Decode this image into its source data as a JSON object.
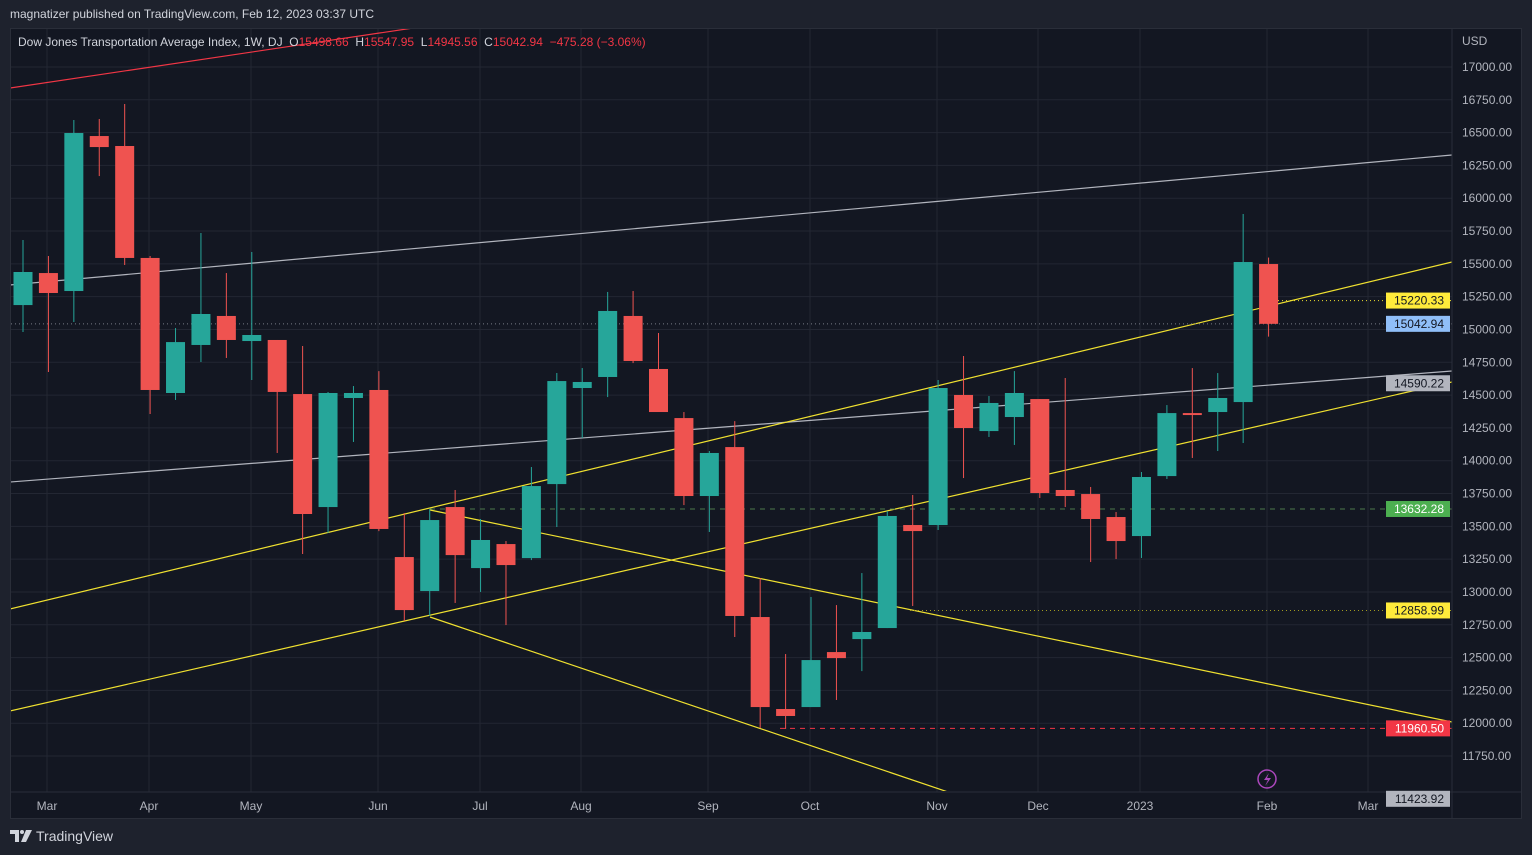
{
  "header": {
    "published": "magnatizer published on TradingView.com, Feb 12, 2023 03:37 UTC"
  },
  "legend": {
    "symbol": "Dow Jones Transportation Average Index, 1W, DJ",
    "open_label": "O",
    "open": "15498.66",
    "high_label": "H",
    "high": "15547.95",
    "low_label": "L",
    "low": "14945.56",
    "close_label": "C",
    "close": "15042.94",
    "change": "−475.28 (−3.06%)"
  },
  "currency": "USD",
  "colors": {
    "up": "#26a69a",
    "down": "#ef5350",
    "yellow": "#f0e130",
    "grid": "#232733"
  },
  "price_axis": [
    "17000.00",
    "16750.00",
    "16500.00",
    "16250.00",
    "16000.00",
    "15750.00",
    "15500.00",
    "15250.00",
    "15000.00",
    "14750.00",
    "14500.00",
    "14250.00",
    "14000.00",
    "13750.00",
    "13500.00",
    "13250.00",
    "13000.00",
    "12750.00",
    "12500.00",
    "12250.00",
    "12000.00",
    "11750.00"
  ],
  "time_axis": [
    "Mar",
    "Apr",
    "May",
    "Jun",
    "Jul",
    "Aug",
    "Sep",
    "Oct",
    "Nov",
    "Dec",
    "2023",
    "Feb",
    "Mar"
  ],
  "price_badges": [
    {
      "value": "15220.33",
      "bg": "#ffeb3b",
      "fg": "#131722",
      "line": "dotted-yellow"
    },
    {
      "value": "15042.94",
      "bg": "#90bff9",
      "fg": "#131722",
      "line": "dotted-gray"
    },
    {
      "value": "14590.22",
      "bg": "#b2b5be",
      "fg": "#131722",
      "line": "none"
    },
    {
      "value": "13632.28",
      "bg": "#4caf50",
      "fg": "#ffffff",
      "line": "dashed-green"
    },
    {
      "value": "12858.99",
      "bg": "#ffeb3b",
      "fg": "#131722",
      "line": "dotted-olive"
    },
    {
      "value": "11960.50",
      "bg": "#f23645",
      "fg": "#ffffff",
      "line": "dashed-red"
    },
    {
      "value": "11423.92",
      "bg": "#b2b5be",
      "fg": "#131722",
      "line": "none"
    }
  ],
  "chart_data": {
    "type": "candlestick",
    "title": "Dow Jones Transportation Average Index, 1W, DJ",
    "ylim": [
      11600,
      17300
    ],
    "ohlc": [
      [
        15186,
        15682,
        14981,
        15438
      ],
      [
        15430,
        15560,
        14676,
        15278
      ],
      [
        15293,
        16596,
        15057,
        16497
      ],
      [
        16474,
        16604,
        16169,
        16390
      ],
      [
        16398,
        16718,
        15491,
        15545
      ],
      [
        15545,
        15560,
        14356,
        14539
      ],
      [
        14516,
        15011,
        14463,
        14904
      ],
      [
        14882,
        15735,
        14752,
        15118
      ],
      [
        15103,
        15430,
        14783,
        14920
      ],
      [
        14912,
        15590,
        14615,
        14958
      ],
      [
        14920,
        14920,
        14059,
        14524
      ],
      [
        14508,
        14874,
        13289,
        13594
      ],
      [
        13647,
        14524,
        13449,
        14516
      ],
      [
        14478,
        14569,
        14143,
        14516
      ],
      [
        14539,
        14683,
        13464,
        13480
      ],
      [
        13266,
        13601,
        12779,
        12862
      ],
      [
        13007,
        13632,
        12817,
        13548
      ],
      [
        13647,
        13777,
        12916,
        13281
      ],
      [
        13182,
        13556,
        13000,
        13396
      ],
      [
        13365,
        13388,
        12748,
        13205
      ],
      [
        13258,
        13952,
        13243,
        13807
      ],
      [
        13822,
        14668,
        13495,
        14607
      ],
      [
        14554,
        14706,
        14173,
        14600
      ],
      [
        14638,
        15286,
        14485,
        15141
      ],
      [
        15103,
        15293,
        14744,
        14760
      ],
      [
        14699,
        14973,
        14371,
        14371
      ],
      [
        14325,
        14371,
        13662,
        13731
      ],
      [
        13731,
        14074,
        13457,
        14059
      ],
      [
        14104,
        14302,
        12657,
        12817
      ],
      [
        12809,
        13106,
        11963,
        12123
      ],
      [
        12108,
        12527,
        11956,
        12055
      ],
      [
        12123,
        12962,
        12123,
        12481
      ],
      [
        12542,
        12900,
        12177,
        12496
      ],
      [
        12641,
        13144,
        12397,
        12695
      ],
      [
        12725,
        13617,
        12725,
        13579
      ],
      [
        13510,
        13739,
        12893,
        13464
      ],
      [
        13510,
        14615,
        13472,
        14554
      ],
      [
        14501,
        14798,
        13868,
        14249
      ],
      [
        14226,
        14493,
        14181,
        14440
      ],
      [
        14333,
        14683,
        14120,
        14516
      ],
      [
        14470,
        14470,
        13716,
        13754
      ],
      [
        13777,
        14630,
        13647,
        13731
      ],
      [
        13746,
        13800,
        13228,
        13556
      ],
      [
        13571,
        13609,
        13251,
        13388
      ],
      [
        13426,
        13914,
        13259,
        13876
      ],
      [
        13883,
        14424,
        13861,
        14363
      ],
      [
        14363,
        14706,
        14021,
        14348
      ],
      [
        14371,
        14668,
        14074,
        14478
      ],
      [
        14447,
        15880,
        14135,
        15514
      ],
      [
        15498.66,
        15547.95,
        14945.56,
        15042.94
      ]
    ]
  },
  "footer": {
    "brand": "TradingView"
  }
}
